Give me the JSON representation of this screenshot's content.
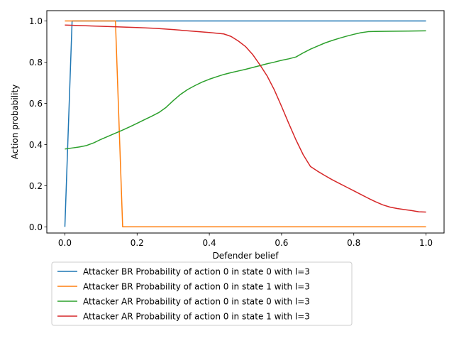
{
  "chart_data": {
    "type": "line",
    "xlabel": "Defender belief",
    "ylabel": "Action probability",
    "xlim": [
      -0.05,
      1.05
    ],
    "ylim": [
      -0.03,
      1.05
    ],
    "xticks": [
      0.0,
      0.2,
      0.4,
      0.6,
      0.8,
      1.0
    ],
    "xtick_labels": [
      "0.0",
      "0.2",
      "0.4",
      "0.6",
      "0.8",
      "1.0"
    ],
    "yticks": [
      0.0,
      0.2,
      0.4,
      0.6,
      0.8,
      1.0
    ],
    "ytick_labels": [
      "0.0",
      "0.2",
      "0.4",
      "0.6",
      "0.8",
      "1.0"
    ],
    "grid": false,
    "legend_placement": "below",
    "series": [
      {
        "name": "Attacker BR Probability of action 0 in state 0 with l=3",
        "color": "#1f77b4",
        "points": [
          [
            0.0,
            0.0
          ],
          [
            0.02,
            1.0
          ],
          [
            0.1,
            1.0
          ],
          [
            0.5,
            1.0
          ],
          [
            1.0,
            1.0
          ]
        ]
      },
      {
        "name": "Attacker BR Probability of action 0 in state 1 with l=3",
        "color": "#ff7f0e",
        "points": [
          [
            0.0,
            1.0
          ],
          [
            0.14,
            1.0
          ],
          [
            0.16,
            0.0
          ],
          [
            0.5,
            0.0
          ],
          [
            1.0,
            0.0
          ]
        ]
      },
      {
        "name": "Attacker AR Probability of action 0 in state 0 with l=3",
        "color": "#2ca02c",
        "points": [
          [
            0.0,
            0.378
          ],
          [
            0.02,
            0.383
          ],
          [
            0.04,
            0.388
          ],
          [
            0.06,
            0.395
          ],
          [
            0.08,
            0.408
          ],
          [
            0.1,
            0.425
          ],
          [
            0.12,
            0.44
          ],
          [
            0.14,
            0.455
          ],
          [
            0.16,
            0.47
          ],
          [
            0.18,
            0.486
          ],
          [
            0.2,
            0.503
          ],
          [
            0.22,
            0.52
          ],
          [
            0.24,
            0.537
          ],
          [
            0.26,
            0.555
          ],
          [
            0.28,
            0.58
          ],
          [
            0.3,
            0.613
          ],
          [
            0.32,
            0.643
          ],
          [
            0.34,
            0.667
          ],
          [
            0.36,
            0.686
          ],
          [
            0.38,
            0.703
          ],
          [
            0.4,
            0.717
          ],
          [
            0.42,
            0.729
          ],
          [
            0.44,
            0.74
          ],
          [
            0.46,
            0.749
          ],
          [
            0.48,
            0.757
          ],
          [
            0.5,
            0.765
          ],
          [
            0.52,
            0.774
          ],
          [
            0.54,
            0.783
          ],
          [
            0.56,
            0.792
          ],
          [
            0.58,
            0.8
          ],
          [
            0.6,
            0.809
          ],
          [
            0.62,
            0.816
          ],
          [
            0.64,
            0.825
          ],
          [
            0.66,
            0.845
          ],
          [
            0.68,
            0.863
          ],
          [
            0.7,
            0.878
          ],
          [
            0.72,
            0.893
          ],
          [
            0.74,
            0.905
          ],
          [
            0.76,
            0.916
          ],
          [
            0.78,
            0.926
          ],
          [
            0.8,
            0.935
          ],
          [
            0.82,
            0.943
          ],
          [
            0.84,
            0.948
          ],
          [
            0.86,
            0.949
          ],
          [
            0.9,
            0.95
          ],
          [
            0.95,
            0.951
          ],
          [
            1.0,
            0.952
          ]
        ]
      },
      {
        "name": "Attacker AR Probability of action 0 in state 1 with l=3",
        "color": "#d62728",
        "points": [
          [
            0.0,
            0.98
          ],
          [
            0.05,
            0.977
          ],
          [
            0.1,
            0.974
          ],
          [
            0.15,
            0.971
          ],
          [
            0.2,
            0.968
          ],
          [
            0.25,
            0.964
          ],
          [
            0.3,
            0.958
          ],
          [
            0.35,
            0.951
          ],
          [
            0.4,
            0.944
          ],
          [
            0.44,
            0.937
          ],
          [
            0.46,
            0.925
          ],
          [
            0.48,
            0.903
          ],
          [
            0.5,
            0.876
          ],
          [
            0.52,
            0.837
          ],
          [
            0.54,
            0.787
          ],
          [
            0.56,
            0.733
          ],
          [
            0.58,
            0.665
          ],
          [
            0.6,
            0.585
          ],
          [
            0.62,
            0.502
          ],
          [
            0.64,
            0.422
          ],
          [
            0.66,
            0.35
          ],
          [
            0.68,
            0.293
          ],
          [
            0.7,
            0.27
          ],
          [
            0.72,
            0.249
          ],
          [
            0.74,
            0.229
          ],
          [
            0.76,
            0.211
          ],
          [
            0.78,
            0.193
          ],
          [
            0.8,
            0.175
          ],
          [
            0.82,
            0.157
          ],
          [
            0.84,
            0.139
          ],
          [
            0.86,
            0.122
          ],
          [
            0.88,
            0.107
          ],
          [
            0.9,
            0.096
          ],
          [
            0.92,
            0.089
          ],
          [
            0.94,
            0.084
          ],
          [
            0.96,
            0.079
          ],
          [
            0.98,
            0.073
          ],
          [
            1.0,
            0.072
          ]
        ]
      }
    ]
  }
}
